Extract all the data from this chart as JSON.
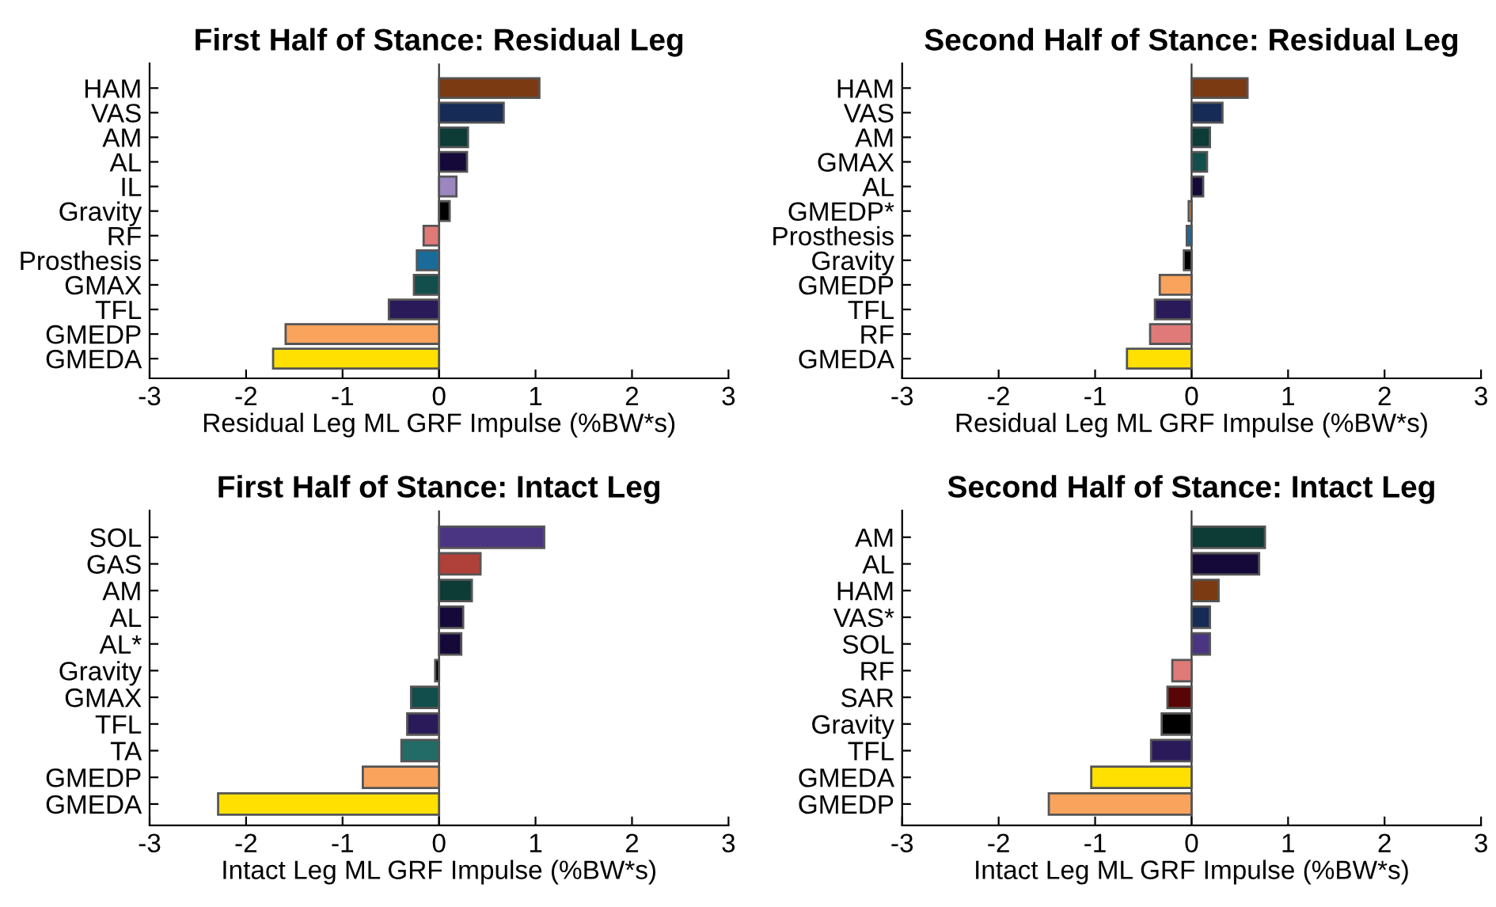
{
  "chart_data": [
    {
      "type": "bar",
      "orientation": "horizontal",
      "title": "First Half of Stance: Residual Leg",
      "ref_lines": [
        {
          "axis": "x",
          "value": 0
        }
      ],
      "xlabel": "Residual Leg ML GRF Impulse (%BW*s)",
      "xlim": [
        -3,
        3
      ],
      "xticks": [
        -3,
        -2,
        -1,
        0,
        1,
        2,
        3
      ],
      "grid": false,
      "legend": false,
      "categories": [
        "HAM",
        "VAS",
        "AM",
        "AL",
        "IL",
        "Gravity",
        "RF",
        "Prosthesis",
        "GMAX",
        "TFL",
        "GMEDP",
        "GMEDA"
      ],
      "values": [
        1.04,
        0.67,
        0.3,
        0.29,
        0.18,
        0.11,
        -0.16,
        -0.23,
        -0.26,
        -0.52,
        -1.59,
        -1.72
      ],
      "colors": [
        "#7b3a12",
        "#162b55",
        "#0d3b36",
        "#15093a",
        "#9b86c0",
        "#000000",
        "#e07a78",
        "#1a6b9a",
        "#124e4b",
        "#2b1a5a",
        "#f9a35d",
        "#ffe000"
      ]
    },
    {
      "type": "bar",
      "orientation": "horizontal",
      "title": "Second Half of Stance: Residual Leg",
      "ref_lines": [
        {
          "axis": "x",
          "value": 0
        }
      ],
      "xlabel": "Residual Leg ML GRF Impulse (%BW*s)",
      "xlim": [
        -3,
        3
      ],
      "xticks": [
        -3,
        -2,
        -1,
        0,
        1,
        2,
        3
      ],
      "grid": false,
      "legend": false,
      "categories": [
        "HAM",
        "VAS",
        "AM",
        "GMAX",
        "AL",
        "GMEDP*",
        "Prosthesis",
        "Gravity",
        "GMEDP",
        "TFL",
        "RF",
        "GMEDA"
      ],
      "values": [
        0.58,
        0.32,
        0.19,
        0.16,
        0.12,
        -0.03,
        -0.05,
        -0.08,
        -0.33,
        -0.38,
        -0.43,
        -0.67
      ],
      "colors": [
        "#7b3a12",
        "#162b55",
        "#0d3b36",
        "#124e4b",
        "#15093a",
        "#f9a35d",
        "#1a6b9a",
        "#000000",
        "#f9a35d",
        "#2b1a5a",
        "#e07a78",
        "#ffe000"
      ]
    },
    {
      "type": "bar",
      "orientation": "horizontal",
      "title": "First Half of Stance: Intact Leg",
      "ref_lines": [
        {
          "axis": "x",
          "value": 0
        }
      ],
      "xlabel": "Intact Leg ML GRF Impulse (%BW*s)",
      "xlim": [
        -3,
        3
      ],
      "xticks": [
        -3,
        -2,
        -1,
        0,
        1,
        2,
        3
      ],
      "grid": false,
      "legend": false,
      "categories": [
        "SOL",
        "GAS",
        "AM",
        "AL",
        "AL*",
        "Gravity",
        "GMAX",
        "TFL",
        "TA",
        "GMEDP",
        "GMEDA"
      ],
      "values": [
        1.09,
        0.43,
        0.34,
        0.25,
        0.23,
        -0.04,
        -0.29,
        -0.33,
        -0.39,
        -0.79,
        -2.29
      ],
      "colors": [
        "#4a3582",
        "#b0403a",
        "#0d3b36",
        "#15093a",
        "#15093a",
        "#000000",
        "#124e4b",
        "#2b1a5a",
        "#236b66",
        "#f9a35d",
        "#ffe000"
      ]
    },
    {
      "type": "bar",
      "orientation": "horizontal",
      "title": "Second Half of Stance: Intact Leg",
      "ref_lines": [
        {
          "axis": "x",
          "value": 0
        }
      ],
      "xlabel": "Intact Leg ML GRF Impulse (%BW*s)",
      "xlim": [
        -3,
        3
      ],
      "xticks": [
        -3,
        -2,
        -1,
        0,
        1,
        2,
        3
      ],
      "grid": false,
      "legend": false,
      "categories": [
        "AM",
        "AL",
        "HAM",
        "VAS*",
        "SOL",
        "RF",
        "SAR",
        "Gravity",
        "TFL",
        "GMEDA",
        "GMEDP"
      ],
      "values": [
        0.76,
        0.7,
        0.28,
        0.19,
        0.19,
        -0.2,
        -0.25,
        -0.31,
        -0.42,
        -1.04,
        -1.48
      ],
      "colors": [
        "#0d3b36",
        "#15093a",
        "#7b3a12",
        "#162b55",
        "#4a3582",
        "#e07a78",
        "#5a0505",
        "#000000",
        "#2b1a5a",
        "#ffe000",
        "#f9a35d"
      ]
    }
  ]
}
